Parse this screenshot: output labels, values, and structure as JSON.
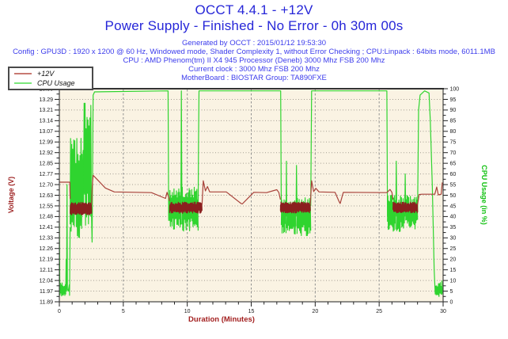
{
  "header": {
    "title": "OCCT 4.4.1 - +12V",
    "subtitle": "Power Supply - Finished - No Error - 0h 30m 00s",
    "generated": "Generated by OCCT : 2015/01/12 19:53:30",
    "config_line": "Config : GPU3D : 1920 x 1200 @ 60 Hz, Windowed mode, Shader Complexity 1, without Error Checking ; CPU:Linpack : 64bits mode, 6011.1MB",
    "cpu_line": "CPU : AMD Phenom(tm) II X4 945 Processor (Deneb) 3000 Mhz FSB 200 Mhz",
    "clock_line": "Current clock : 3000 Mhz FSB 200 Mhz",
    "motherboard_line": "MotherBoard : BIOSTAR Group: TA890FXE"
  },
  "legend": {
    "items": [
      {
        "label": "+12V",
        "swatch_color": "#c87a72"
      },
      {
        "label": "CPU Usage",
        "swatch_color": "#7ce87c"
      }
    ]
  },
  "colors": {
    "title": "#2626d8",
    "info": "#3c3cec",
    "voltage_axis": "#9b1c1c",
    "cpu_axis": "#12c112",
    "duration_axis": "#a32020",
    "plot_bg": "#faf3e3",
    "grid_h": "#a29d92",
    "grid_v": "#8f8f8f",
    "frame": "#444444",
    "tick_label": "#1a1a1a",
    "volt_line": "#a8423a",
    "volt_band": "#8b1f1f",
    "cpu_line": "#2fd42f"
  },
  "chart_data": {
    "type": "line",
    "title": "OCCT 4.4.1 - +12V",
    "subtitle": "Power Supply - Finished - No Error - 0h 30m 00s",
    "xlabel": "Duration (Minutes)",
    "ylabel_left": "Voltage (V)",
    "ylabel_right": "CPU Usage (in %)",
    "x_range": [
      0,
      30
    ],
    "x_major_ticks": [
      "0",
      "5",
      "10",
      "15",
      "20",
      "25",
      "30"
    ],
    "x_major_values": [
      0,
      5,
      10,
      15,
      20,
      25,
      30
    ],
    "x_minor_step": 1,
    "y_left_range": [
      11.89,
      13.36
    ],
    "y_left_ticks": [
      "13.36",
      "13.29",
      "13.21",
      "13.14",
      "13.07",
      "12.99",
      "12.92",
      "12.85",
      "12.77",
      "12.70",
      "12.63",
      "12.55",
      "12.48",
      "12.41",
      "12.33",
      "12.26",
      "12.19",
      "12.11",
      "12.04",
      "11.97",
      "11.89"
    ],
    "y_right_range": [
      0,
      100
    ],
    "y_right_ticks": [
      "100",
      "95",
      "90",
      "85",
      "80",
      "75",
      "70",
      "65",
      "60",
      "55",
      "50",
      "45",
      "40",
      "35",
      "30",
      "25",
      "20",
      "15",
      "10",
      "5",
      "0"
    ],
    "grid": true,
    "legend_position": "top-left",
    "series": [
      {
        "name": "CPU Usage",
        "axis": "right",
        "color": "#2fd42f",
        "segments": [
          {
            "t": "l",
            "pts": [
              [
                0,
                37
              ],
              [
                0.04,
                6
              ]
            ]
          },
          {
            "t": "n",
            "x0": 0.05,
            "x1": 0.5,
            "lo": 2.5,
            "hi": 9,
            "n": 14
          },
          {
            "t": "l",
            "pts": [
              [
                0.5,
                5
              ],
              [
                0.53,
                20
              ],
              [
                0.56,
                5
              ],
              [
                0.6,
                55
              ],
              [
                0.63,
                6
              ],
              [
                0.7,
                5
              ],
              [
                0.78,
                8
              ],
              [
                0.8,
                3
              ],
              [
                0.84,
                35
              ]
            ]
          },
          {
            "t": "n",
            "x0": 0.84,
            "x1": 1.9,
            "lo": 30,
            "hi": 78,
            "n": 26
          },
          {
            "t": "n",
            "x0": 1.9,
            "x1": 2.5,
            "lo": 33,
            "hi": 96,
            "n": 16
          },
          {
            "t": "l",
            "pts": [
              [
                2.5,
                45
              ],
              [
                2.56,
                28
              ],
              [
                2.6,
                60
              ],
              [
                2.64,
                97
              ],
              [
                2.75,
                98.5
              ],
              [
                8.5,
                99
              ],
              [
                8.55,
                38
              ]
            ]
          },
          {
            "t": "n",
            "x0": 8.55,
            "x1": 9.5,
            "lo": 34,
            "hi": 54,
            "n": 30
          },
          {
            "t": "l",
            "pts": [
              [
                9.5,
                45
              ],
              [
                9.54,
                99
              ],
              [
                9.58,
                45
              ]
            ]
          },
          {
            "t": "n",
            "x0": 9.58,
            "x1": 10.85,
            "lo": 33,
            "hi": 54,
            "n": 38
          },
          {
            "t": "l",
            "pts": [
              [
                10.85,
                45
              ],
              [
                10.88,
                75
              ],
              [
                10.92,
                99
              ],
              [
                17.3,
                99
              ],
              [
                17.35,
                42
              ]
            ]
          },
          {
            "t": "n",
            "x0": 17.35,
            "x1": 17.72,
            "lo": 32,
            "hi": 48,
            "n": 12
          },
          {
            "t": "l",
            "pts": [
              [
                17.72,
                40
              ],
              [
                17.75,
                66
              ],
              [
                17.78,
                40
              ]
            ]
          },
          {
            "t": "n",
            "x0": 17.78,
            "x1": 18.5,
            "lo": 31,
            "hi": 48,
            "n": 22
          },
          {
            "t": "l",
            "pts": [
              [
                18.5,
                40
              ],
              [
                18.54,
                64
              ],
              [
                18.58,
                40
              ]
            ]
          },
          {
            "t": "n",
            "x0": 18.58,
            "x1": 19.65,
            "lo": 31,
            "hi": 50,
            "n": 32
          },
          {
            "t": "l",
            "pts": [
              [
                19.65,
                45
              ],
              [
                19.72,
                99
              ],
              [
                25.6,
                99
              ],
              [
                25.65,
                40
              ]
            ]
          },
          {
            "t": "n",
            "x0": 25.65,
            "x1": 26.3,
            "lo": 33,
            "hi": 50,
            "n": 20
          },
          {
            "t": "l",
            "pts": [
              [
                26.3,
                40
              ],
              [
                26.34,
                66
              ],
              [
                26.38,
                40
              ]
            ]
          },
          {
            "t": "n",
            "x0": 26.38,
            "x1": 27.0,
            "lo": 33,
            "hi": 50,
            "n": 19
          },
          {
            "t": "l",
            "pts": [
              [
                27.0,
                40
              ],
              [
                27.04,
                60
              ],
              [
                27.08,
                40
              ]
            ]
          },
          {
            "t": "n",
            "x0": 27.08,
            "x1": 28.0,
            "lo": 34,
            "hi": 50,
            "n": 28
          },
          {
            "t": "l",
            "pts": [
              [
                28.0,
                42
              ],
              [
                28.08,
                90
              ],
              [
                28.2,
                97
              ],
              [
                28.55,
                99
              ],
              [
                28.9,
                98
              ],
              [
                29.0,
                85
              ],
              [
                29.15,
                55
              ],
              [
                29.3,
                15
              ],
              [
                29.38,
                4
              ]
            ]
          },
          {
            "t": "n",
            "x0": 29.38,
            "x1": 29.9,
            "lo": 2,
            "hi": 9,
            "n": 14
          },
          {
            "t": "l",
            "pts": [
              [
                29.9,
                10
              ],
              [
                29.95,
                4
              ],
              [
                30,
                6
              ]
            ]
          }
        ]
      },
      {
        "name": "+12V",
        "axis": "left",
        "color": "#a8423a",
        "segments": [
          {
            "t": "l",
            "pts": [
              [
                0,
                12.715
              ],
              [
                0.82,
                12.715
              ],
              [
                0.83,
                12.655
              ],
              [
                0.85,
                12.6
              ]
            ]
          },
          {
            "t": "n",
            "x0": 0.85,
            "x1": 2.52,
            "lo": 12.49,
            "hi": 12.575,
            "n": 110,
            "c": "#8b1f1f"
          },
          {
            "t": "l",
            "pts": [
              [
                2.52,
                12.56
              ],
              [
                2.58,
                12.7
              ],
              [
                2.64,
                12.762
              ],
              [
                2.78,
                12.75
              ],
              [
                3.6,
                12.675
              ],
              [
                4.3,
                12.648
              ],
              [
                7.2,
                12.643
              ],
              [
                8.3,
                12.603
              ],
              [
                8.42,
                12.645
              ],
              [
                8.55,
                12.61
              ],
              [
                8.62,
                12.585
              ]
            ]
          },
          {
            "t": "n",
            "x0": 8.62,
            "x1": 11.15,
            "lo": 12.5,
            "hi": 12.578,
            "n": 160,
            "c": "#8b1f1f"
          },
          {
            "t": "l",
            "pts": [
              [
                11.15,
                12.56
              ],
              [
                11.25,
                12.725
              ],
              [
                11.42,
                12.655
              ],
              [
                11.58,
                12.685
              ],
              [
                11.75,
                12.648
              ],
              [
                13.05,
                12.648
              ],
              [
                14.2,
                12.568
              ],
              [
                14.3,
                12.565
              ],
              [
                15.2,
                12.645
              ],
              [
                16.2,
                12.643
              ],
              [
                17.0,
                12.663
              ],
              [
                17.15,
                12.645
              ],
              [
                17.28,
                12.595
              ]
            ]
          },
          {
            "t": "n",
            "x0": 17.28,
            "x1": 19.62,
            "lo": 12.503,
            "hi": 12.578,
            "n": 150,
            "c": "#8b1f1f"
          },
          {
            "t": "l",
            "pts": [
              [
                19.62,
                12.56
              ],
              [
                19.72,
                12.725
              ],
              [
                19.88,
                12.65
              ],
              [
                20.05,
                12.673
              ],
              [
                20.3,
                12.648
              ],
              [
                21.55,
                12.645
              ],
              [
                21.85,
                12.585
              ],
              [
                21.95,
                12.568
              ],
              [
                22.2,
                12.645
              ],
              [
                25.6,
                12.643
              ],
              [
                25.85,
                12.665
              ],
              [
                26.0,
                12.645
              ],
              [
                26.08,
                12.595
              ]
            ]
          },
          {
            "t": "n",
            "x0": 26.08,
            "x1": 28.0,
            "lo": 12.503,
            "hi": 12.578,
            "n": 130,
            "c": "#8b1f1f"
          },
          {
            "t": "l",
            "pts": [
              [
                28.0,
                12.56
              ],
              [
                28.12,
                12.63
              ],
              [
                28.35,
                12.632
              ],
              [
                29.35,
                12.632
              ],
              [
                29.5,
                12.682
              ],
              [
                29.62,
                12.628
              ],
              [
                29.85,
                12.632
              ],
              [
                29.93,
                12.71
              ],
              [
                30,
                12.708
              ]
            ]
          }
        ]
      }
    ]
  }
}
